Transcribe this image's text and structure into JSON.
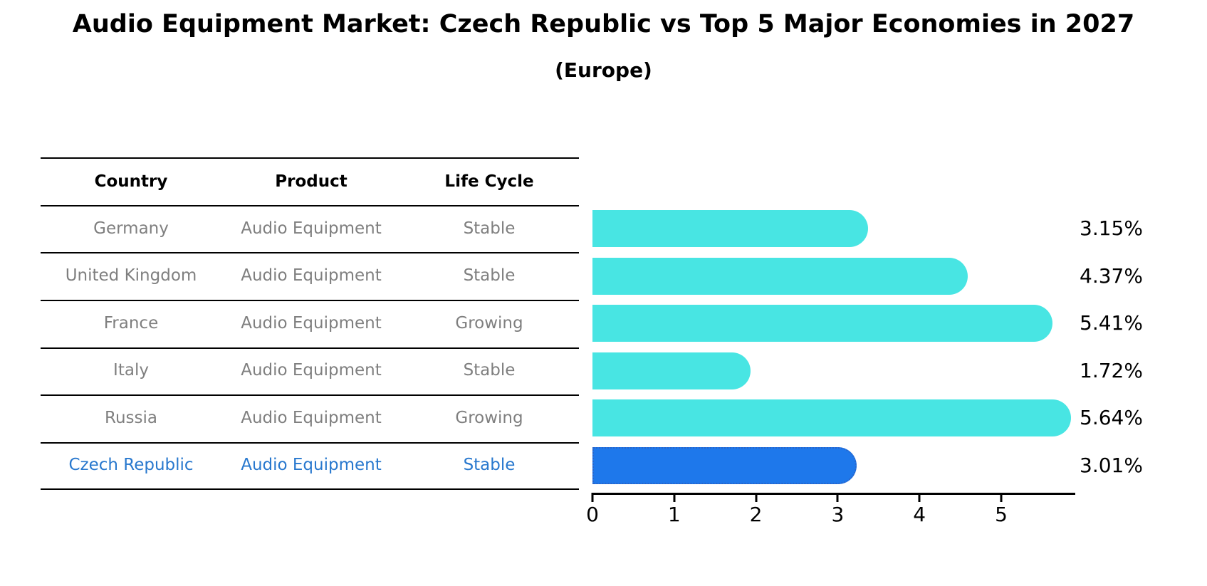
{
  "header": {
    "title": "Audio Equipment Market: Czech Republic vs Top 5 Major Economies in 2027",
    "subtitle": "(Europe)"
  },
  "table": {
    "columns": {
      "country": "Country",
      "product": "Product",
      "life_cycle": "Life Cycle"
    },
    "rows": [
      {
        "country": "Germany",
        "product": "Audio Equipment",
        "life_cycle": "Stable",
        "highlighted": false
      },
      {
        "country": "United Kingdom",
        "product": "Audio Equipment",
        "life_cycle": "Stable",
        "highlighted": false
      },
      {
        "country": "France",
        "product": "Audio Equipment",
        "life_cycle": "Growing",
        "highlighted": false
      },
      {
        "country": "Italy",
        "product": "Audio Equipment",
        "life_cycle": "Stable",
        "highlighted": false
      },
      {
        "country": "Russia",
        "product": "Audio Equipment",
        "life_cycle": "Growing",
        "highlighted": false
      },
      {
        "country": "Czech Republic",
        "product": "Audio Equipment",
        "life_cycle": "Stable",
        "highlighted": true
      }
    ]
  },
  "chart_data": {
    "type": "bar",
    "orientation": "horizontal",
    "title": "Audio Equipment Market: Czech Republic vs Top 5 Major Economies in 2027",
    "subtitle": "(Europe)",
    "categories": [
      "Germany",
      "United Kingdom",
      "France",
      "Italy",
      "Russia",
      "Czech Republic"
    ],
    "values": [
      3.15,
      4.37,
      5.41,
      1.72,
      5.64,
      3.01
    ],
    "value_labels": [
      "3.15%",
      "4.37%",
      "5.41%",
      "1.72%",
      "5.64%",
      "3.01%"
    ],
    "x_ticks": [
      "0",
      "1",
      "2",
      "3",
      "4",
      "5"
    ],
    "xlim": [
      0,
      5.9
    ],
    "grid": false,
    "legend": false,
    "highlight_index": 5,
    "bar_color_default": "#48e5e3",
    "bar_color_highlight": "#1e78eb",
    "highlight_text_color": "#2878ce",
    "row_text_color": "#7f7f7f"
  }
}
